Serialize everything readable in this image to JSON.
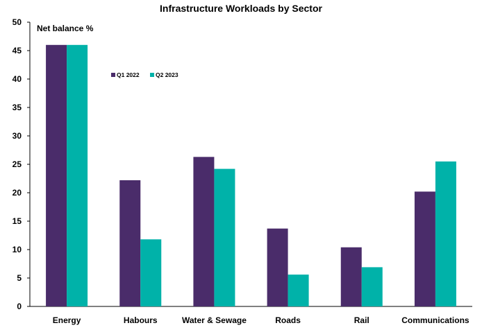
{
  "chart_data": {
    "type": "bar",
    "title": "Infrastructure Workloads by Sector",
    "ylabel": "Net balance %",
    "xlabel": "",
    "categories": [
      "Energy",
      "Habours",
      "Water & Sewage",
      "Roads",
      "Rail",
      "Communications"
    ],
    "series": [
      {
        "name": "Q1 2022",
        "color": "#4a2c6a",
        "values": [
          46,
          22.2,
          26.3,
          13.7,
          10.4,
          20.2
        ]
      },
      {
        "name": "Q2 2023",
        "color": "#00b2a9",
        "values": [
          46,
          11.8,
          24.2,
          5.6,
          6.9,
          25.5
        ]
      }
    ],
    "ylim": [
      0,
      50
    ],
    "yticks": [
      0,
      5,
      10,
      15,
      20,
      25,
      30,
      35,
      40,
      45,
      50
    ],
    "grid": false,
    "legend": "top-left"
  }
}
